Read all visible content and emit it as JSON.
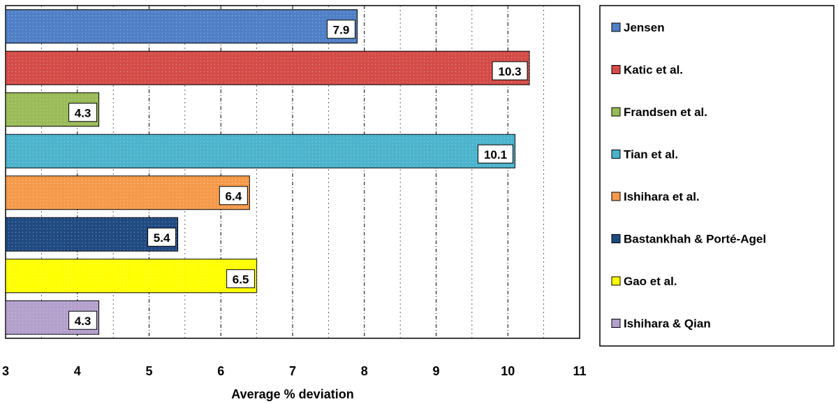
{
  "chart_data": {
    "type": "bar",
    "orientation": "horizontal",
    "categories": [
      "Jensen",
      "Katic et al.",
      "Frandsen et al.",
      "Tian et al.",
      "Ishihara et al.",
      "Bastankhah & Porté-Agel",
      "Gao et al.",
      "Ishihara & Qian"
    ],
    "values": [
      7.9,
      10.3,
      4.3,
      10.1,
      6.4,
      5.4,
      6.5,
      4.3
    ],
    "value_labels": [
      "7.9",
      "10.3",
      "4.3",
      "10.1",
      "6.4",
      "5.4",
      "6.5",
      "4.3"
    ],
    "colors": [
      "#4f7fc6",
      "#d44b47",
      "#9abb58",
      "#4bb3cc",
      "#f59a4a",
      "#1f4a82",
      "#ffff00",
      "#b3a0cc"
    ],
    "xlabel": "Average % deviation",
    "ylabel": "",
    "xlim": [
      3,
      11
    ],
    "x_ticks": [
      "3",
      "4",
      "5",
      "6",
      "7",
      "8",
      "9",
      "10",
      "11"
    ],
    "grid": "vertical dashed",
    "legend_position": "right"
  }
}
